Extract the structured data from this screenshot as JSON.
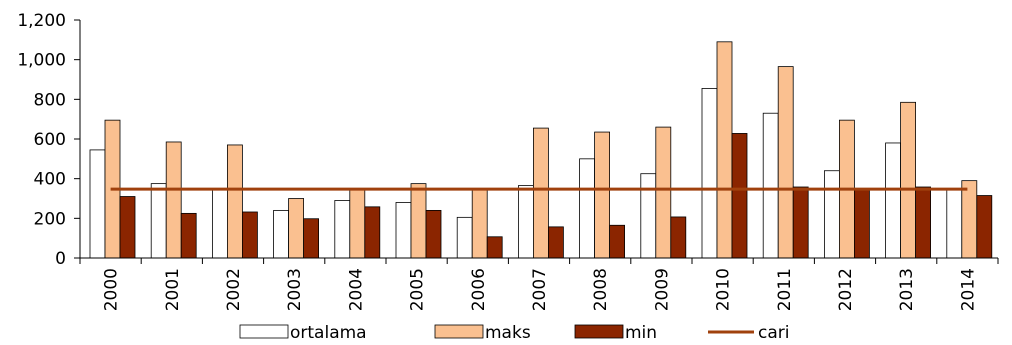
{
  "chart_data": {
    "type": "bar",
    "title": "",
    "xlabel": "",
    "ylabel": "",
    "ylim": [
      0,
      1200
    ],
    "yticks": [
      0,
      200,
      400,
      600,
      800,
      1000,
      1200
    ],
    "ytick_labels": [
      "0",
      "200",
      "400",
      "600",
      "800",
      "1,000",
      "1,200"
    ],
    "categories": [
      "2000",
      "2001",
      "2002",
      "2003",
      "2004",
      "2005",
      "2006",
      "2007",
      "2008",
      "2009",
      "2010",
      "2011",
      "2012",
      "2013",
      "2014"
    ],
    "series": [
      {
        "name": "ortalama",
        "kind": "bar",
        "color": "#ffffff",
        "stroke": "#000000",
        "values": [
          545,
          375,
          345,
          240,
          290,
          280,
          205,
          365,
          500,
          425,
          855,
          730,
          440,
          580,
          345
        ]
      },
      {
        "name": "maks",
        "kind": "bar",
        "color": "#fac090",
        "stroke": "#000000",
        "values": [
          695,
          585,
          570,
          300,
          350,
          375,
          345,
          655,
          635,
          660,
          1090,
          965,
          695,
          785,
          390
        ]
      },
      {
        "name": "min",
        "kind": "bar",
        "color": "#8b2500",
        "stroke": "#000000",
        "values": [
          310,
          225,
          232,
          198,
          258,
          240,
          107,
          157,
          165,
          207,
          628,
          358,
          345,
          358,
          315
        ]
      },
      {
        "name": "cari",
        "kind": "line",
        "color": "#a0410d",
        "value": 347
      }
    ],
    "grid": false,
    "legend_position": "bottom"
  }
}
